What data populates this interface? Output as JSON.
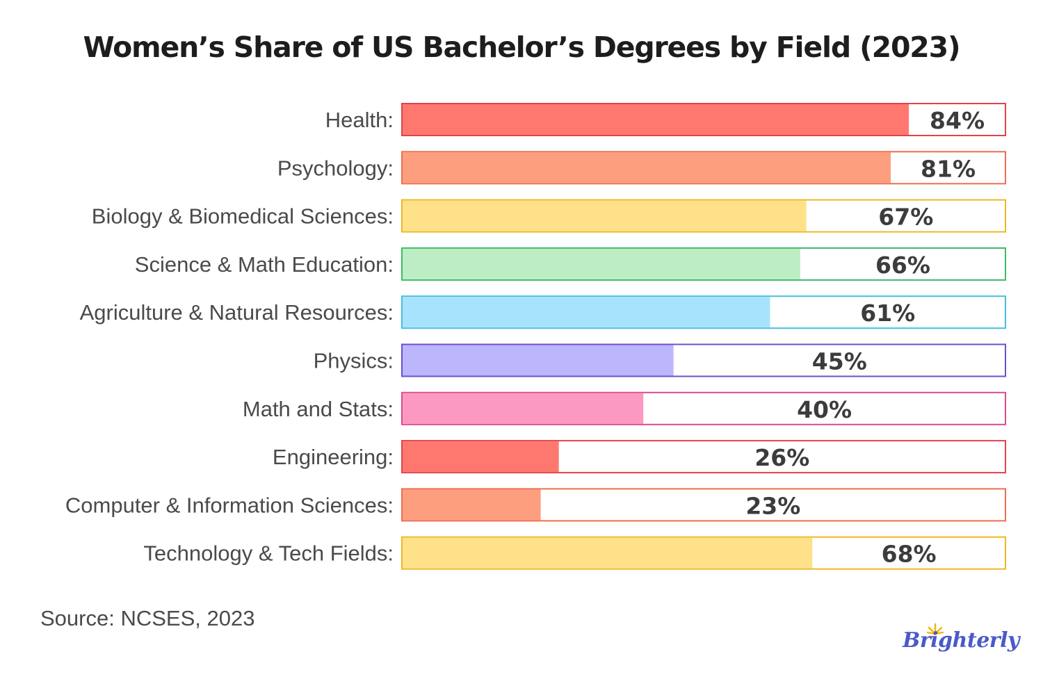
{
  "title": "Women’s Share of US Bachelor’s Degrees by Field (2023)",
  "source": "Source: NCSES, 2023",
  "logo": "Brighterly",
  "chart_data": {
    "type": "bar",
    "orientation": "horizontal",
    "categories": [
      "Health:",
      "Psychology:",
      "Biology & Biomedical Sciences:",
      "Science & Math Education:",
      "Agriculture & Natural Resources:",
      "Physics:",
      "Math and Stats:",
      "Engineering:",
      "Computer & Information Sciences:",
      "Technology & Tech Fields:"
    ],
    "values": [
      84,
      81,
      67,
      66,
      61,
      45,
      40,
      26,
      23,
      68
    ],
    "value_labels": [
      "84%",
      "81%",
      "67%",
      "66%",
      "61%",
      "45%",
      "40%",
      "26%",
      "23%",
      "68%"
    ],
    "fill_colors": [
      "#ff7870",
      "#fd9e7f",
      "#fee189",
      "#bdedc2",
      "#a8e3fd",
      "#bcb6fd",
      "#fc99c2",
      "#ff7870",
      "#fd9e7f",
      "#fee189"
    ],
    "border_colors": [
      "#e1424a",
      "#ec6e52",
      "#ecba22",
      "#3cba68",
      "#46bedf",
      "#6b4fce",
      "#dc4a8d",
      "#e1424a",
      "#ec6e52",
      "#ecba22"
    ],
    "xlim": [
      0,
      100
    ],
    "grid": false,
    "legend": "none"
  }
}
